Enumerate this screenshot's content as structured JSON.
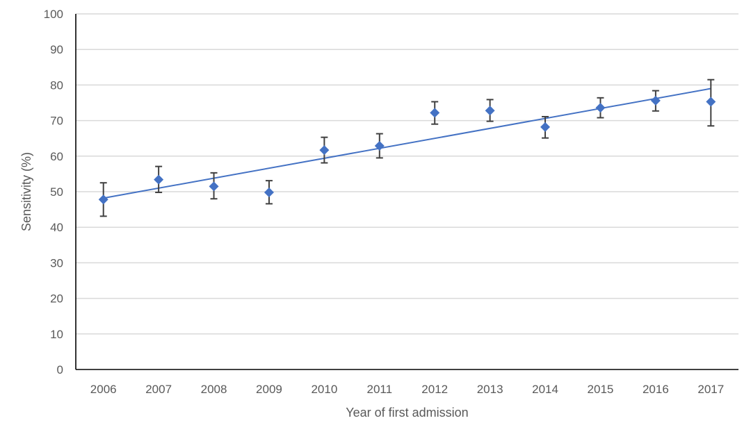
{
  "chart_data": {
    "type": "scatter",
    "title": "",
    "xlabel": "Year of first admission",
    "ylabel": "Sensitivity (%)",
    "ylim": [
      0,
      100
    ],
    "yticks": [
      0,
      10,
      20,
      30,
      40,
      50,
      60,
      70,
      80,
      90,
      100
    ],
    "grid": true,
    "legend": "none",
    "categories": [
      "2006",
      "2007",
      "2008",
      "2009",
      "2010",
      "2011",
      "2012",
      "2013",
      "2014",
      "2015",
      "2016",
      "2017"
    ],
    "series": [
      {
        "marker": "diamond",
        "color": "#4472C4",
        "values": [
          47.8,
          53.4,
          51.5,
          49.8,
          61.7,
          62.9,
          72.2,
          72.8,
          68.2,
          73.6,
          75.6,
          75.3
        ],
        "error_low": [
          43.1,
          49.8,
          48.0,
          46.6,
          58.1,
          59.5,
          69.0,
          69.8,
          65.1,
          70.8,
          72.7,
          68.5
        ],
        "error_high": [
          52.5,
          57.1,
          55.3,
          53.1,
          65.3,
          66.3,
          75.3,
          75.9,
          71.1,
          76.4,
          78.4,
          81.5
        ]
      }
    ],
    "trendline": {
      "type": "linear",
      "color": "#4472C4",
      "start": 48.2,
      "end": 79.0
    },
    "colors": {
      "axis": "#000000",
      "grid": "#D9D9D9",
      "error_bar": "#404040",
      "text": "#595959"
    }
  }
}
